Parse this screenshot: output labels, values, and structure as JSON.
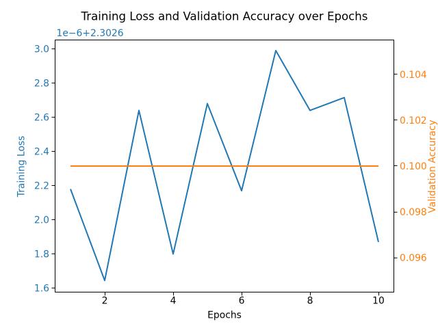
{
  "chart_data": {
    "type": "line",
    "title": "Training Loss and Validation Accuracy over Epochs",
    "xlabel": "Epochs",
    "x": [
      1,
      2,
      3,
      4,
      5,
      6,
      7,
      8,
      9,
      10
    ],
    "x_ticks": [
      "2",
      "4",
      "6",
      "8",
      "10"
    ],
    "x_tick_values": [
      2,
      4,
      6,
      8,
      10
    ],
    "xlim": [
      0.55,
      10.45
    ],
    "left_axis": {
      "label": "Training Loss",
      "color": "#1f77b4",
      "offset_label": "1e−6+2.3026",
      "offset_note": "tick values are 1e-6 units above 2.3026",
      "ticks": [
        "1.6",
        "1.8",
        "2.0",
        "2.2",
        "2.4",
        "2.6",
        "2.8",
        "3.0"
      ],
      "tick_values": [
        1.6,
        1.8,
        2.0,
        2.2,
        2.4,
        2.6,
        2.8,
        3.0
      ],
      "ylim": [
        1.577,
        3.052
      ]
    },
    "right_axis": {
      "label": "Validation Accuracy",
      "color": "#ff7f0e",
      "ticks": [
        "0.096",
        "0.098",
        "0.100",
        "0.102",
        "0.104"
      ],
      "tick_values": [
        0.096,
        0.098,
        0.1,
        0.102,
        0.104
      ],
      "ylim": [
        0.0945,
        0.1055
      ]
    },
    "series": [
      {
        "name": "Training Loss",
        "axis": "left",
        "color": "#1f77b4",
        "values": [
          2.18,
          1.645,
          2.64,
          1.8,
          2.68,
          2.17,
          2.99,
          2.64,
          2.715,
          1.87
        ]
      },
      {
        "name": "Validation Accuracy",
        "axis": "right",
        "color": "#ff7f0e",
        "values": [
          0.1,
          0.1,
          0.1,
          0.1,
          0.1,
          0.1,
          0.1,
          0.1,
          0.1,
          0.1
        ]
      }
    ],
    "grid": false,
    "legend": false
  }
}
